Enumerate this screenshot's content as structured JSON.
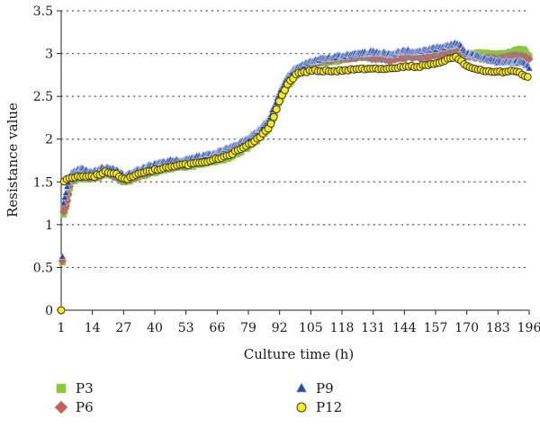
{
  "chart_data": {
    "type": "scatter",
    "xlabel": "Culture time (h)",
    "ylabel": "Resistance value",
    "xlim": [
      1,
      196
    ],
    "ylim": [
      0,
      3.5
    ],
    "x_ticks": [
      1,
      14,
      27,
      40,
      53,
      66,
      79,
      92,
      105,
      118,
      131,
      144,
      157,
      170,
      183,
      196
    ],
    "x_tick_labels": [
      "1",
      "14",
      "27",
      "40",
      "53",
      "66",
      "79",
      "92",
      "105",
      "118",
      "131",
      "144",
      "157",
      "170",
      "183",
      "196"
    ],
    "y_ticks": [
      0,
      0.5,
      1,
      1.5,
      2,
      2.5,
      3,
      3.5
    ],
    "y_tick_labels": [
      "0",
      "0.5",
      "1",
      "1.5",
      "2",
      "2.5",
      "3",
      "3.5"
    ],
    "grid": "horizontal-dotted",
    "legend_position": "bottom",
    "anchor_x": [
      1,
      2,
      3,
      5,
      8,
      14,
      20,
      24,
      27,
      30,
      33,
      40,
      46,
      53,
      60,
      66,
      72,
      79,
      84,
      88,
      92,
      95,
      99,
      105,
      110,
      118,
      125,
      131,
      138,
      144,
      150,
      157,
      162,
      166,
      170,
      176,
      183,
      190,
      193,
      196
    ],
    "series": [
      {
        "name": "P3",
        "color": "#8dc63f",
        "marker": "square",
        "values": [
          0.0,
          1.12,
          1.2,
          1.5,
          1.55,
          1.54,
          1.6,
          1.56,
          1.5,
          1.52,
          1.56,
          1.62,
          1.66,
          1.68,
          1.72,
          1.75,
          1.8,
          1.92,
          2.02,
          2.15,
          2.45,
          2.62,
          2.76,
          2.86,
          2.9,
          2.93,
          2.96,
          2.96,
          2.94,
          2.98,
          2.97,
          3.0,
          3.0,
          3.03,
          2.99,
          3.0,
          2.98,
          3.02,
          3.05,
          2.97
        ]
      },
      {
        "name": "P6",
        "color": "#d8574e",
        "marker": "diamond",
        "values": [
          0.0,
          1.15,
          1.22,
          1.52,
          1.57,
          1.55,
          1.61,
          1.57,
          1.52,
          1.54,
          1.58,
          1.64,
          1.68,
          1.7,
          1.74,
          1.78,
          1.84,
          1.95,
          2.05,
          2.18,
          2.48,
          2.66,
          2.79,
          2.88,
          2.92,
          2.95,
          2.96,
          2.95,
          2.93,
          2.96,
          2.95,
          2.98,
          2.99,
          3.02,
          2.96,
          2.95,
          2.93,
          2.97,
          2.98,
          2.92
        ]
      },
      {
        "name": "P9",
        "color": "#2b4a9c",
        "marker": "triangle",
        "values": [
          0.0,
          1.25,
          1.38,
          1.6,
          1.65,
          1.62,
          1.67,
          1.63,
          1.57,
          1.6,
          1.64,
          1.7,
          1.74,
          1.76,
          1.8,
          1.84,
          1.9,
          2.0,
          2.12,
          2.25,
          2.55,
          2.72,
          2.83,
          2.9,
          2.94,
          2.97,
          3.0,
          3.02,
          2.99,
          3.03,
          3.02,
          3.06,
          3.08,
          3.12,
          3.0,
          2.95,
          2.9,
          2.9,
          2.89,
          2.84
        ]
      },
      {
        "name": "P12",
        "color": "#ffee00",
        "marker": "circle",
        "values": [
          0.0,
          1.5,
          1.53,
          1.55,
          1.56,
          1.56,
          1.62,
          1.59,
          1.53,
          1.55,
          1.59,
          1.64,
          1.68,
          1.7,
          1.73,
          1.77,
          1.83,
          1.93,
          2.03,
          2.15,
          2.45,
          2.63,
          2.76,
          2.8,
          2.8,
          2.8,
          2.82,
          2.82,
          2.82,
          2.85,
          2.85,
          2.88,
          2.93,
          2.96,
          2.85,
          2.8,
          2.78,
          2.8,
          2.76,
          2.72
        ]
      }
    ]
  }
}
